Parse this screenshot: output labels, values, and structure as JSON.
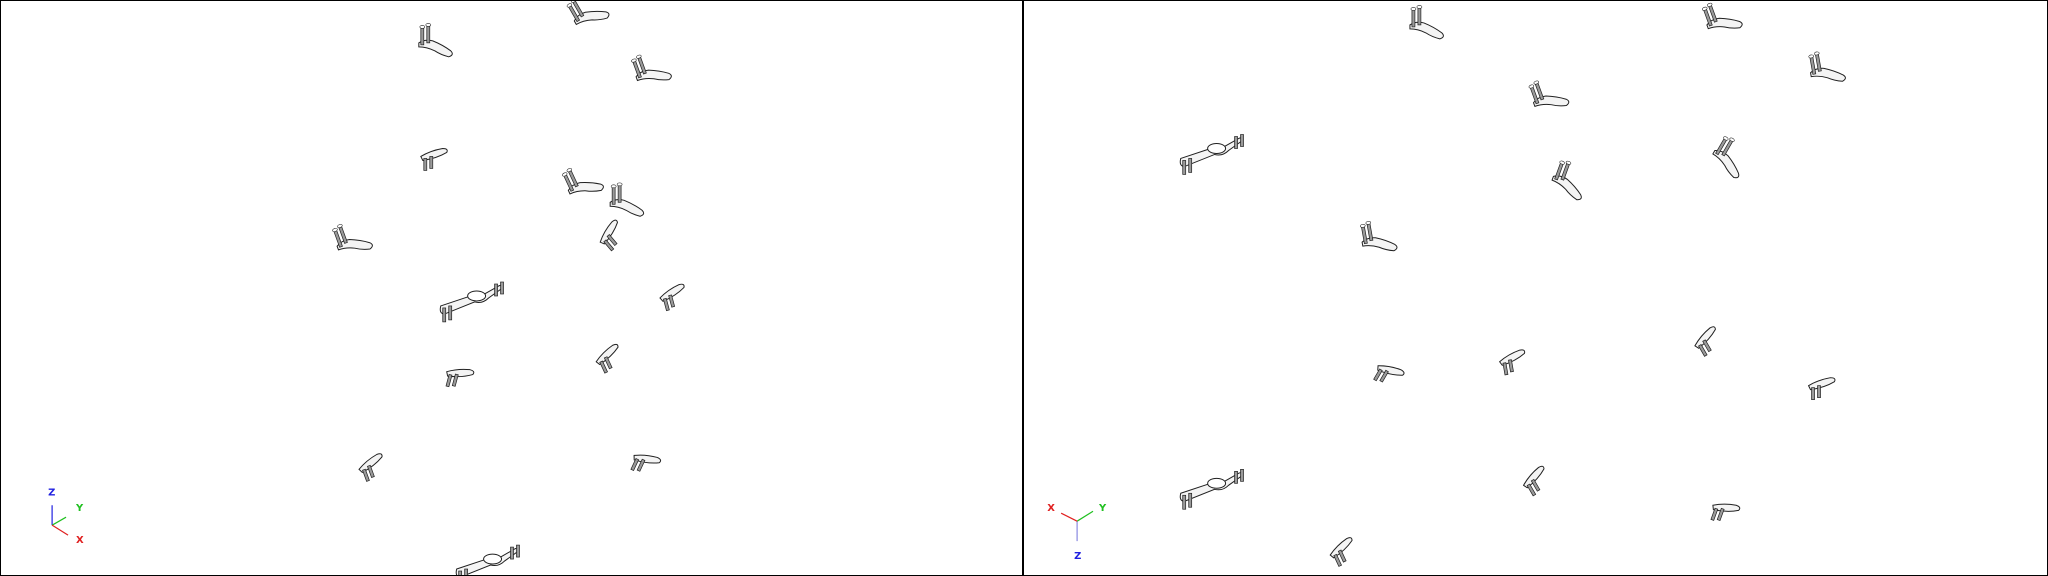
{
  "views": [
    {
      "id": "left",
      "axis_labels": {
        "x": "X",
        "y": "Y",
        "z": "Z"
      },
      "axis_colors": {
        "x": "#e02020",
        "y": "#20c020",
        "z": "#2020e0"
      },
      "triad_orientation": "z-up"
    },
    {
      "id": "right",
      "axis_labels": {
        "x": "X",
        "y": "Y",
        "z": "Z"
      },
      "axis_colors": {
        "x": "#e02020",
        "y": "#20c020",
        "z": "#2020e0"
      },
      "triad_orientation": "z-down"
    }
  ],
  "colors": {
    "part_fill": "#f4f4f4",
    "part_stroke": "#202020",
    "part_shade": "#9a9a9a",
    "divider": "#000000",
    "background": "#ffffff"
  }
}
